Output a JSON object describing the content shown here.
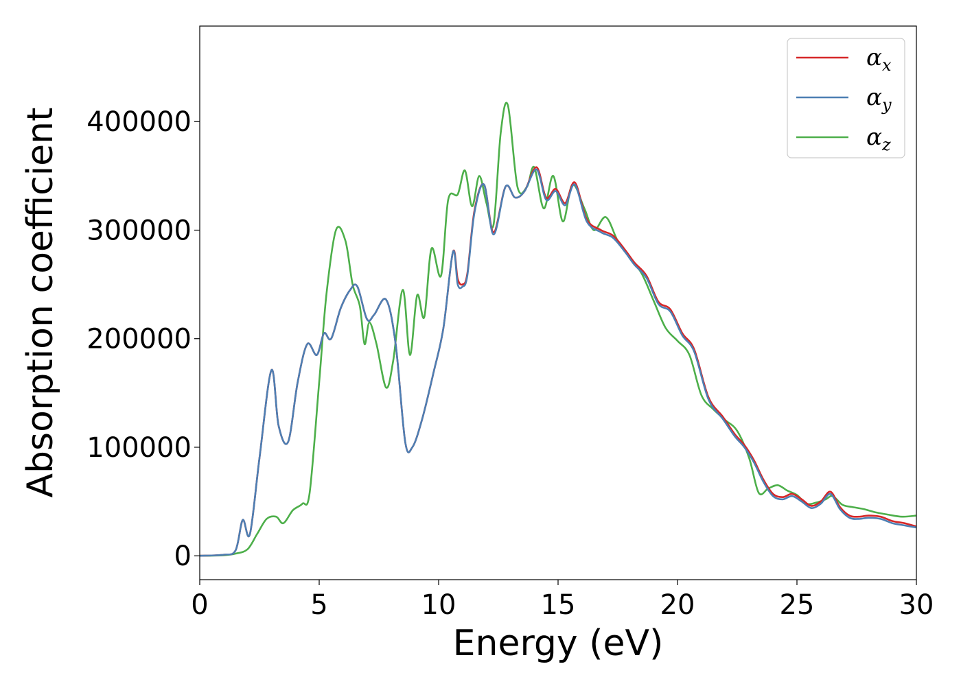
{
  "chart_data": {
    "type": "line",
    "xlabel": "Energy (eV)",
    "ylabel": "Absorption coefficient",
    "xlim": [
      0,
      30
    ],
    "ylim": [
      -22000,
      488000
    ],
    "xticks": [
      0,
      5,
      10,
      15,
      20,
      25,
      30
    ],
    "yticks": [
      0,
      100000,
      200000,
      300000,
      400000
    ],
    "legend_position": "top-right",
    "grid": false,
    "series": [
      {
        "name": "α_x",
        "legend_base": "α",
        "legend_sub": "x",
        "color": "#d62728",
        "x": [
          0,
          1,
          1.5,
          1.8,
          2.1,
          2.5,
          3.0,
          3.3,
          3.7,
          4.1,
          4.5,
          4.9,
          5.2,
          5.5,
          5.9,
          6.3,
          6.6,
          7.0,
          7.3,
          7.8,
          8.2,
          8.6,
          8.9,
          9.3,
          9.8,
          10.2,
          10.6,
          10.8,
          11.0,
          11.2,
          11.5,
          11.9,
          12.3,
          12.8,
          13.2,
          13.6,
          14.1,
          14.5,
          14.9,
          15.3,
          15.7,
          16.2,
          16.8,
          17.3,
          17.8,
          18.2,
          18.7,
          19.2,
          19.7,
          20.2,
          20.7,
          21.3,
          21.9,
          22.4,
          22.8,
          23.2,
          23.6,
          24.0,
          24.4,
          24.8,
          25.2,
          25.6,
          26.0,
          26.4,
          26.8,
          27.2,
          27.6,
          28.0,
          28.5,
          29.0,
          29.5,
          30.0
        ],
        "y": [
          0,
          1000,
          5000,
          33000,
          20000,
          90000,
          171000,
          120000,
          105000,
          160000,
          195000,
          185000,
          205000,
          200000,
          228000,
          245000,
          248000,
          218000,
          222000,
          236000,
          195000,
          105000,
          100000,
          125000,
          170000,
          210000,
          280000,
          255000,
          250000,
          260000,
          318000,
          342000,
          298000,
          340000,
          330000,
          336000,
          358000,
          330000,
          338000,
          325000,
          344000,
          310000,
          300000,
          295000,
          282000,
          270000,
          258000,
          234000,
          227000,
          205000,
          190000,
          146000,
          128000,
          112000,
          102000,
          88000,
          70000,
          57000,
          54000,
          57000,
          52000,
          46000,
          50000,
          59000,
          45000,
          37000,
          36000,
          37000,
          36000,
          32000,
          30000,
          27000
        ]
      },
      {
        "name": "α_y",
        "legend_base": "α",
        "legend_sub": "y",
        "color": "#4d7fb3",
        "x": [
          0,
          1,
          1.5,
          1.8,
          2.1,
          2.5,
          3.0,
          3.3,
          3.7,
          4.1,
          4.5,
          4.9,
          5.2,
          5.5,
          5.9,
          6.3,
          6.6,
          7.0,
          7.3,
          7.8,
          8.2,
          8.6,
          8.9,
          9.3,
          9.8,
          10.2,
          10.6,
          10.8,
          11.0,
          11.2,
          11.5,
          11.9,
          12.3,
          12.8,
          13.2,
          13.6,
          14.1,
          14.5,
          14.9,
          15.3,
          15.7,
          16.2,
          16.8,
          17.3,
          17.8,
          18.2,
          18.7,
          19.2,
          19.7,
          20.2,
          20.7,
          21.3,
          21.9,
          22.4,
          22.8,
          23.2,
          23.6,
          24.0,
          24.4,
          24.8,
          25.2,
          25.6,
          26.0,
          26.4,
          26.8,
          27.2,
          27.6,
          28.0,
          28.5,
          29.0,
          29.5,
          30.0
        ],
        "y": [
          0,
          1000,
          5000,
          33000,
          20000,
          90000,
          171000,
          120000,
          105000,
          160000,
          195000,
          185000,
          205000,
          200000,
          228000,
          245000,
          248000,
          218000,
          222000,
          236000,
          195000,
          105000,
          100000,
          125000,
          170000,
          210000,
          280000,
          250000,
          248000,
          258000,
          316000,
          342000,
          296000,
          340000,
          330000,
          336000,
          356000,
          328000,
          336000,
          323000,
          342000,
          308000,
          298000,
          293000,
          280000,
          268000,
          256000,
          232000,
          225000,
          203000,
          188000,
          144000,
          126000,
          110000,
          100000,
          86000,
          68000,
          55000,
          52000,
          55000,
          50000,
          44000,
          48000,
          57000,
          43000,
          35000,
          34000,
          35000,
          34000,
          30000,
          28000,
          26000
        ]
      },
      {
        "name": "α_z",
        "legend_base": "α",
        "legend_sub": "z",
        "color": "#4daf4a",
        "x": [
          0,
          1,
          1.5,
          2.0,
          2.4,
          2.8,
          3.2,
          3.5,
          3.9,
          4.3,
          4.6,
          5.0,
          5.3,
          5.7,
          6.1,
          6.4,
          6.7,
          6.9,
          7.1,
          7.4,
          7.8,
          8.1,
          8.5,
          8.8,
          9.1,
          9.4,
          9.7,
          10.1,
          10.4,
          10.8,
          11.1,
          11.4,
          11.7,
          12.0,
          12.3,
          12.6,
          12.9,
          13.3,
          13.7,
          14.0,
          14.4,
          14.8,
          15.2,
          15.6,
          16.1,
          16.5,
          17.0,
          17.5,
          18.0,
          18.5,
          19.0,
          19.5,
          20.0,
          20.5,
          21.0,
          21.5,
          22.0,
          22.5,
          23.0,
          23.4,
          23.8,
          24.2,
          24.6,
          25.0,
          25.4,
          25.8,
          26.2,
          26.5,
          26.9,
          27.3,
          27.8,
          28.3,
          28.8,
          29.4,
          30.0
        ],
        "y": [
          0,
          500,
          2000,
          6000,
          20000,
          34000,
          36000,
          30000,
          42000,
          48000,
          58000,
          160000,
          240000,
          300000,
          290000,
          250000,
          230000,
          195000,
          215000,
          195000,
          155000,
          180000,
          245000,
          185000,
          240000,
          220000,
          283000,
          258000,
          328000,
          333000,
          355000,
          322000,
          350000,
          325000,
          305000,
          390000,
          415000,
          340000,
          340000,
          358000,
          320000,
          350000,
          308000,
          342000,
          320000,
          300000,
          312000,
          290000,
          275000,
          260000,
          235000,
          210000,
          198000,
          185000,
          148000,
          135000,
          125000,
          115000,
          90000,
          58000,
          62000,
          65000,
          60000,
          56000,
          48000,
          49000,
          52000,
          55000,
          47000,
          45000,
          43000,
          40000,
          38000,
          36000,
          37000
        ]
      }
    ]
  }
}
